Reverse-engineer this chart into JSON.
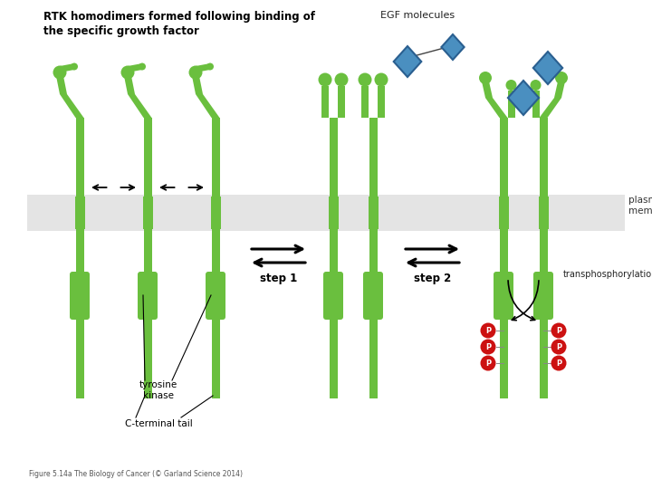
{
  "title_line1": "RTK homodimers formed following binding of",
  "title_line2": "the specific growth factor",
  "egf_label": "EGF molecules",
  "plasma_membrane_label": "plasma\nmembrane",
  "step1_label": "step 1",
  "step2_label": "step 2",
  "tyrosine_kinase_label": "tyrosine\nkinase",
  "c_terminal_label": "C-terminal tail",
  "transphosphorylation_label": "transphosphorylation",
  "caption": "Figure 5.14a The Biology of Cancer (© Garland Science 2014)",
  "green": "#6abf3e",
  "blue_egf": "#4a8fc0",
  "blue_egf_dark": "#2a5f90",
  "red_p": "#cc1111",
  "membrane_color": "#d2d2d2",
  "bg_color": "#ffffff"
}
